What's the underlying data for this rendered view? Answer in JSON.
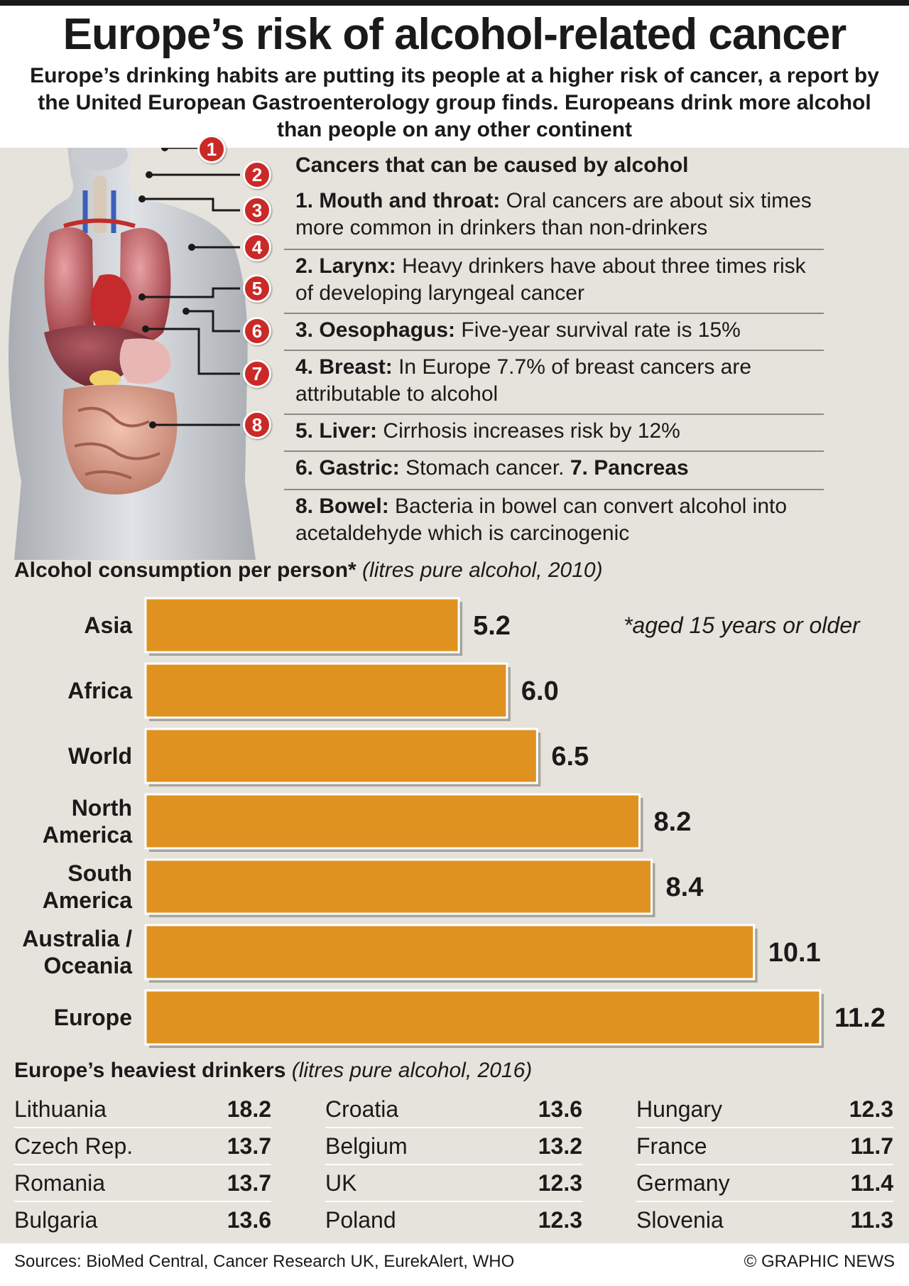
{
  "title": "Europe’s risk of alcohol-related cancer",
  "subtitle": "Europe’s drinking habits are putting its people at a higher risk of cancer, a report by the United European Gastroenterology group finds. Europeans drink more alcohol than people on any other continent",
  "colors": {
    "bar": "#e09220",
    "marker": "#c92a27",
    "panel": "#e6e3dc"
  },
  "anatomy": {
    "markers": [
      "1",
      "2",
      "3",
      "4",
      "5",
      "6",
      "7",
      "8"
    ]
  },
  "cancers": {
    "heading": "Cancers that can be caused by alcohol",
    "items": [
      {
        "label": "1. Mouth and throat:",
        "text": " Oral cancers are about six times more common in drinkers than non-drinkers"
      },
      {
        "label": "2. Larynx:",
        "text": " Heavy drinkers have about three times risk of developing laryngeal cancer"
      },
      {
        "label": "3. Oesophagus:",
        "text": " Five-year survival rate is 15%"
      },
      {
        "label": "4. Breast:",
        "text": " In Europe 7.7% of breast cancers are attributable to alcohol"
      },
      {
        "label": "5. Liver:",
        "text": " Cirrhosis increases risk by 12%"
      },
      {
        "label": "6. Gastric:",
        "text": " Stomach cancer. ",
        "label2": "7. Pancreas"
      },
      {
        "label": "8. Bowel:",
        "text": " Bacteria in bowel can convert alcohol into acetaldehyde which is carcinogenic"
      }
    ]
  },
  "chart_data": {
    "type": "bar",
    "orientation": "horizontal",
    "title": "Alcohol consumption per person*",
    "units": "(litres pure alcohol, 2010)",
    "note": "*aged 15 years or older",
    "categories": [
      [
        "Asia"
      ],
      [
        "Africa"
      ],
      [
        "World"
      ],
      [
        "North",
        "America"
      ],
      [
        "South",
        "America"
      ],
      [
        "Australia /",
        "Oceania"
      ],
      [
        "Europe"
      ]
    ],
    "values": [
      5.2,
      6.0,
      6.5,
      8.2,
      8.4,
      10.1,
      11.2
    ],
    "value_labels": [
      "5.2",
      "6.0",
      "6.5",
      "8.2",
      "8.4",
      "10.1",
      "11.2"
    ],
    "xlim": [
      0,
      11.2
    ],
    "grid": false
  },
  "drinkers": {
    "title": "Europe’s heaviest drinkers",
    "units": "(litres pure alcohol, 2016)",
    "columns": [
      [
        {
          "country": "Lithuania",
          "value": "18.2"
        },
        {
          "country": "Czech Rep.",
          "value": "13.7"
        },
        {
          "country": "Romania",
          "value": "13.7"
        },
        {
          "country": "Bulgaria",
          "value": "13.6"
        }
      ],
      [
        {
          "country": "Croatia",
          "value": "13.6"
        },
        {
          "country": "Belgium",
          "value": "13.2"
        },
        {
          "country": "UK",
          "value": "12.3"
        },
        {
          "country": "Poland",
          "value": "12.3"
        }
      ],
      [
        {
          "country": "Hungary",
          "value": "12.3"
        },
        {
          "country": "France",
          "value": "11.7"
        },
        {
          "country": "Germany",
          "value": "11.4"
        },
        {
          "country": "Slovenia",
          "value": "11.3"
        }
      ]
    ]
  },
  "footer": {
    "sources": "Sources: BioMed Central, Cancer Research UK, EurekAlert, WHO",
    "credit": "© GRAPHIC NEWS"
  }
}
